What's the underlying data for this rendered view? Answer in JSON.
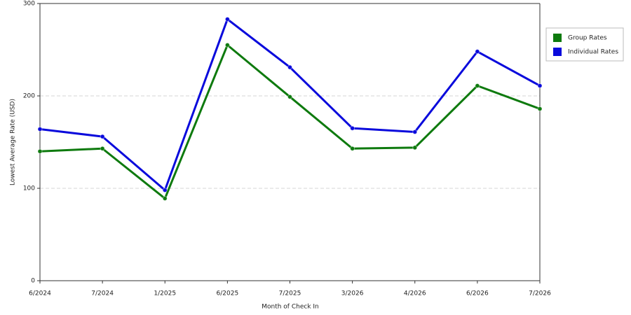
{
  "chart_data": {
    "type": "line",
    "x_label": "Month of Check In",
    "y_label": "Lowest Average Rate (USD)",
    "categories": [
      "6/2024",
      "7/2024",
      "1/2025",
      "6/2025",
      "7/2025",
      "3/2026",
      "4/2026",
      "6/2026",
      "7/2026"
    ],
    "series": [
      {
        "name": "Group Rates",
        "color": "#0e7a0e",
        "values": [
          140,
          143,
          89,
          255,
          199,
          143,
          144,
          211,
          186
        ]
      },
      {
        "name": "Individual Rates",
        "color": "#0a0adc",
        "values": [
          164,
          156,
          98,
          283,
          231,
          165,
          161,
          248,
          211
        ]
      }
    ],
    "ylim": [
      0,
      300
    ],
    "yticks": [
      0,
      100,
      200,
      300
    ],
    "grid": true,
    "legend": "right"
  }
}
